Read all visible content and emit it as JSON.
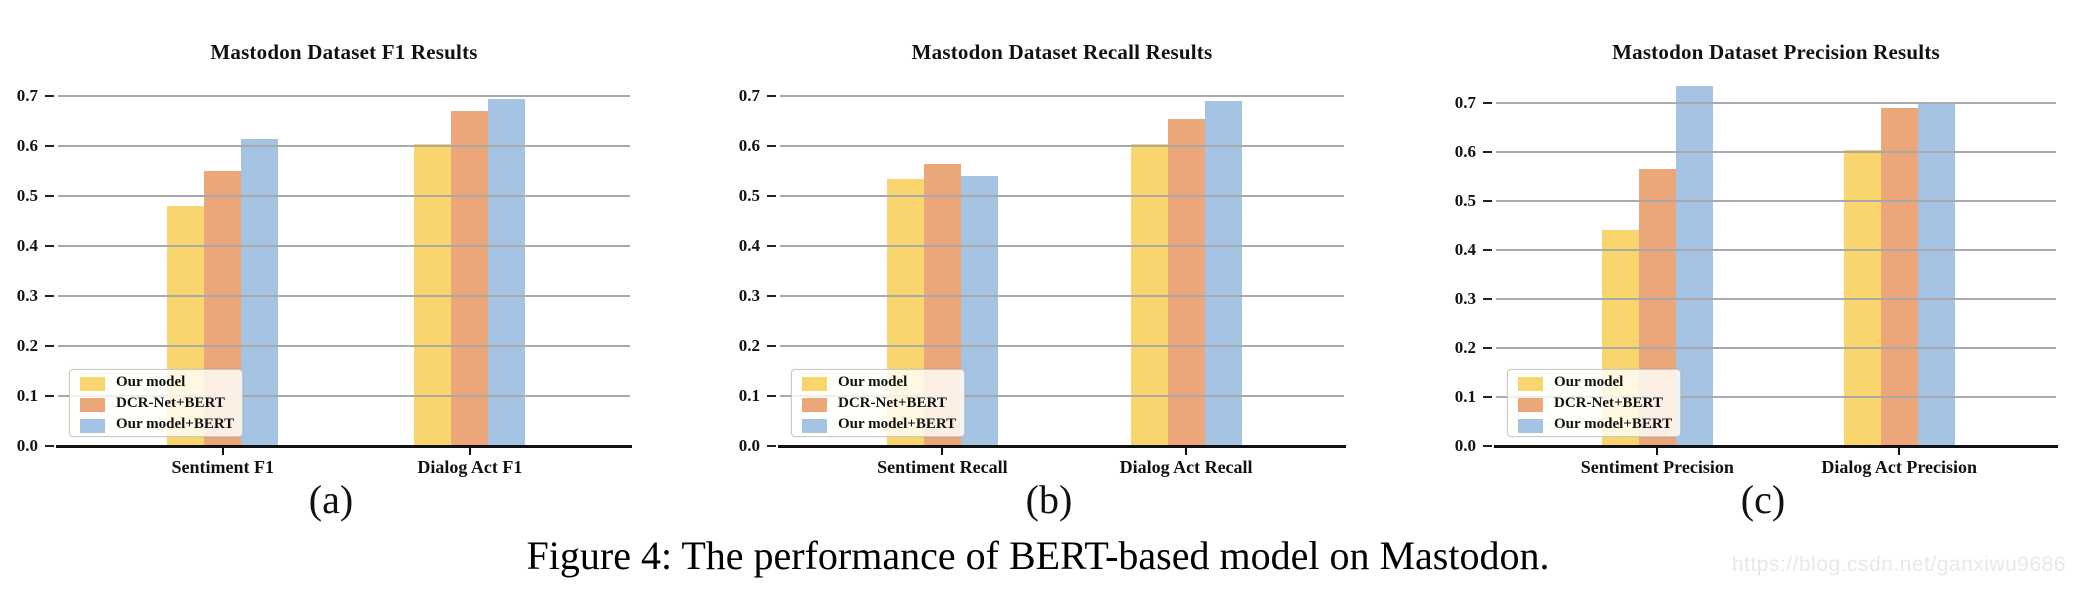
{
  "figure": {
    "caption": "Figure 4: The performance of BERT-based model on Mastodon.",
    "watermark": "https://blog.csdn.net/ganxiwu9686"
  },
  "palette": [
    "#F8D66D",
    "#EBA679",
    "#A5C4E4"
  ],
  "grid_color": "#a9a9a9",
  "chart_data": [
    {
      "type": "bar",
      "title": "Mastodon Dataset F1 Results",
      "panel_label": "(a)",
      "categories": [
        "Sentiment F1",
        "Dialog Act F1"
      ],
      "series": [
        {
          "name": "Our model",
          "color": "#F8D66D",
          "values": [
            0.48,
            0.605
          ]
        },
        {
          "name": "DCR-Net+BERT",
          "color": "#EBA679",
          "values": [
            0.55,
            0.67
          ]
        },
        {
          "name": "Our model+BERT",
          "color": "#A5C4E4",
          "values": [
            0.615,
            0.695
          ]
        }
      ],
      "yticks": [
        "0.0",
        "0.1",
        "0.2",
        "0.3",
        "0.4",
        "0.5",
        "0.6",
        "0.7"
      ],
      "ylim": [
        0,
        0.745
      ],
      "grid": true,
      "legend_position": "lower left"
    },
    {
      "type": "bar",
      "title": "Mastodon Dataset Recall Results",
      "panel_label": "(b)",
      "categories": [
        "Sentiment Recall",
        "Dialog Act Recall"
      ],
      "series": [
        {
          "name": "Our model",
          "color": "#F8D66D",
          "values": [
            0.535,
            0.605
          ]
        },
        {
          "name": "DCR-Net+BERT",
          "color": "#EBA679",
          "values": [
            0.565,
            0.655
          ]
        },
        {
          "name": "Our model+BERT",
          "color": "#A5C4E4",
          "values": [
            0.54,
            0.69
          ]
        }
      ],
      "yticks": [
        "0.0",
        "0.1",
        "0.2",
        "0.3",
        "0.4",
        "0.5",
        "0.6",
        "0.7"
      ],
      "ylim": [
        0,
        0.745
      ],
      "grid": true,
      "legend_position": "lower left"
    },
    {
      "type": "bar",
      "title": "Mastodon Dataset Precision Results",
      "panel_label": "(c)",
      "categories": [
        "Sentiment Precision",
        "Dialog Act Precision"
      ],
      "series": [
        {
          "name": "Our model",
          "color": "#F8D66D",
          "values": [
            0.44,
            0.605
          ]
        },
        {
          "name": "DCR-Net+BERT",
          "color": "#EBA679",
          "values": [
            0.565,
            0.69
          ]
        },
        {
          "name": "Our model+BERT",
          "color": "#A5C4E4",
          "values": [
            0.735,
            0.7
          ]
        }
      ],
      "yticks": [
        "0.0",
        "0.1",
        "0.2",
        "0.3",
        "0.4",
        "0.5",
        "0.6",
        "0.7"
      ],
      "ylim": [
        0,
        0.765
      ],
      "grid": true,
      "legend_position": "lower left"
    }
  ]
}
